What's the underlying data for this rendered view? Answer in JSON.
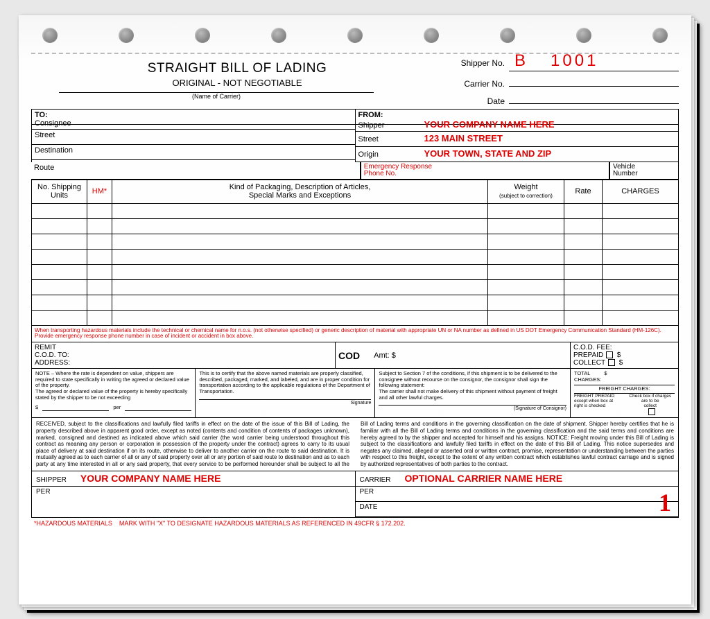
{
  "title": "STRAIGHT BILL OF LADING",
  "subtitle": "ORIGINAL - NOT NEGOTIABLE",
  "shipper_no_label": "Shipper No.",
  "shipper_no_prefix": "B",
  "shipper_no_value": "1001",
  "carrier_no_label": "Carrier No.",
  "date_label": "Date",
  "carrier_name_label": "(Name of Carrier)",
  "to": {
    "header": "TO:",
    "consignee": "Consignee",
    "street": "Street",
    "destination": "Destination"
  },
  "from": {
    "header": "FROM:",
    "shipper": "Shipper",
    "company": "YOUR COMPANY NAME HERE",
    "street_label": "Street",
    "street": "123 MAIN STREET",
    "origin_label": "Origin",
    "origin": "YOUR TOWN, STATE AND ZIP"
  },
  "route_label": "Route",
  "emergency_label": "Emergency Response\nPhone No.",
  "vehicle_label": "Vehicle\nNumber",
  "columns": {
    "units": "No. Shipping\nUnits",
    "hm": "HM*",
    "desc": "Kind of Packaging, Description of Articles,\nSpecial Marks and Exceptions",
    "weight": "Weight",
    "weight_sub": "(subject to correction)",
    "rate": "Rate",
    "charges": "CHARGES"
  },
  "blank_rows": 8,
  "hm_note": "When transporting hazardous materials include the technical or chemical name for n.o.s. (not otherwise specified) or generic description of material with appropriate UN or NA number as defined in US DOT Emergency Communication Standard (HM-126C). Provide emergency response phone number in case of incident or accident in box above.",
  "remit": {
    "remit": "REMIT",
    "cod_to": "C.O.D. TO:",
    "address": "ADDRESS:",
    "cod": "COD",
    "amt": "Amt: $",
    "cod_fee": "C.O.D. FEE:",
    "prepaid": "PREPAID",
    "collect": "COLLECT",
    "dollar": "$"
  },
  "cert1": "NOTE – Where the rate is dependent on value, shippers are required to state specifically in writing the agreed or declared value of the property.\nThe agreed or declared value of the property is hereby specifically stated by the shipper to be not exceeding",
  "cert1_per": "per",
  "cert2": "This is to certify that the above named materials are properly classified, described, packaged, marked, and labeled, and are in proper condition for transportation according to the applicable regulations of the Department of Transportation.",
  "cert2_sig": "Signature",
  "cert3": "Subject to Section 7 of the conditions, if this shipment is to be delivered to the consignee without recourse on the consignor, the consignor shall sign the following statement:\nThe carrier shall not make delivery of this shipment without payment of freight and all other lawful charges.",
  "cert3_sig": "(Signature of Consignor)",
  "total_charges": "TOTAL\nCHARGES:",
  "freight_charges": "FREIGHT CHARGES:",
  "freight_prepaid": "FREIGHT PREPAID\nexcept when box at\nright is checked",
  "freight_collect": "Check box if charges\nare to be\ncollect",
  "received": "RECEIVED, subject to the classifications and lawfully filed tariffs in effect on the date of the issue of this Bill of Lading, the property described above in apparent good order, except as noted (contents and condition of contents of packages unknown), marked, consigned and destined as indicated above which said carrier (the word carrier being understood throughout this contract as meaning any person or corporation in possession of the property under the contract) agrees to carry to its usual place of delivery at said destination if on its route, otherwise to deliver to another carrier on the route to said destination. It is mutually agreed as to each carrier of all or any of said property over all or any portion of said route to destination and as to each party at any time interested in all or any said property, that every service to be performed hereunder shall be subject to all the Bill of Lading terms and conditions in the governing classification on the date of shipment.\nShipper hereby certifies that he is familiar with all the Bill of Lading terms and conditions in the governing classification and the said terms and conditions are hereby agreed to by the shipper and accepted for himself and his assigns.\nNOTICE: Freight moving under this Bill of Lading is subject to the classifications and lawfully filed tariffs in effect on the date of this Bill of Lading. This notice supersedes and negates any claimed, alleged or asserted oral or written contract, promise, representation or understanding between the parties with respect to this freight, except to the extent of any written contract which establishes lawful contract carriage and is signed by authorized representatives of both parties to the contract.",
  "footer": {
    "shipper": "SHIPPER",
    "shipper_val": "YOUR COMPANY NAME HERE",
    "carrier": "CARRIER",
    "carrier_val": "OPTIONAL CARRIER NAME HERE",
    "per": "PER",
    "date": "DATE",
    "page": "1"
  },
  "hazfoot": "*HAZARDOUS MATERIALS    MARK WITH \"X\" TO DESIGNATE HAZARDOUS MATERIALS AS REFERENCED IN 49CFR § 172.202."
}
